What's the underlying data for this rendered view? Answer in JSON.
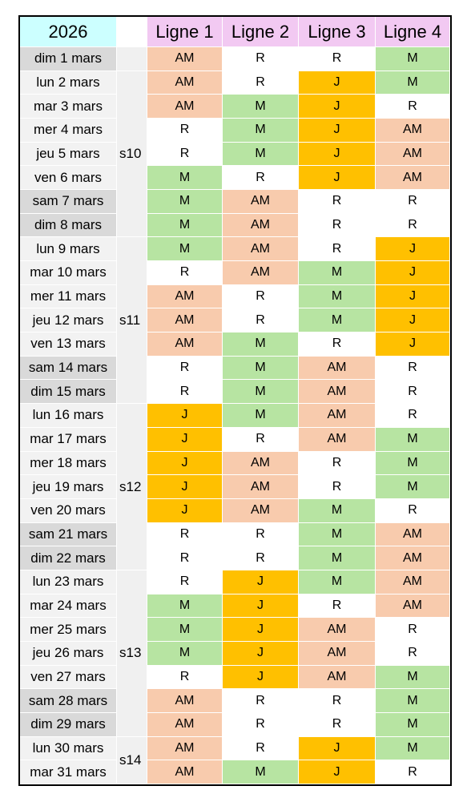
{
  "header": {
    "year": "2026",
    "lines": [
      "Ligne 1",
      "Ligne 2",
      "Ligne 3",
      "Ligne 4"
    ]
  },
  "colors": {
    "year": "#ccffff",
    "lines": "#f2c9f2",
    "weekday": "#f2f2f2",
    "weekend": "#d9d9d9",
    "week": "#f0f0f0",
    "cells": {
      "AM": "#f8cbad",
      "M": "#b7e4a2",
      "J": "#ffc000",
      "R": "#ffffff"
    }
  },
  "blocks": [
    {
      "week": null,
      "days": [
        {
          "date": "dim 1 mars",
          "weekend": true,
          "cells": [
            "AM",
            "R",
            "R",
            "M"
          ]
        }
      ]
    },
    {
      "week": "s10",
      "days": [
        {
          "date": "lun 2 mars",
          "cells": [
            "AM",
            "R",
            "J",
            "M"
          ]
        },
        {
          "date": "mar 3 mars",
          "cells": [
            "AM",
            "M",
            "J",
            "R"
          ]
        },
        {
          "date": "mer 4 mars",
          "cells": [
            "R",
            "M",
            "J",
            "AM"
          ]
        },
        {
          "date": "jeu 5 mars",
          "cells": [
            "R",
            "M",
            "J",
            "AM"
          ]
        },
        {
          "date": "ven 6 mars",
          "cells": [
            "M",
            "R",
            "J",
            "AM"
          ]
        },
        {
          "date": "sam 7 mars",
          "weekend": true,
          "cells": [
            "M",
            "AM",
            "R",
            "R"
          ]
        },
        {
          "date": "dim 8 mars",
          "weekend": true,
          "cells": [
            "M",
            "AM",
            "R",
            "R"
          ]
        }
      ]
    },
    {
      "week": "s11",
      "days": [
        {
          "date": "lun 9 mars",
          "cells": [
            "M",
            "AM",
            "R",
            "J"
          ]
        },
        {
          "date": "mar 10 mars",
          "cells": [
            "R",
            "AM",
            "M",
            "J"
          ]
        },
        {
          "date": "mer 11 mars",
          "cells": [
            "AM",
            "R",
            "M",
            "J"
          ]
        },
        {
          "date": "jeu 12 mars",
          "cells": [
            "AM",
            "R",
            "M",
            "J"
          ]
        },
        {
          "date": "ven 13 mars",
          "cells": [
            "AM",
            "M",
            "R",
            "J"
          ]
        },
        {
          "date": "sam 14 mars",
          "weekend": true,
          "cells": [
            "R",
            "M",
            "AM",
            "R"
          ]
        },
        {
          "date": "dim 15 mars",
          "weekend": true,
          "cells": [
            "R",
            "M",
            "AM",
            "R"
          ]
        }
      ]
    },
    {
      "week": "s12",
      "days": [
        {
          "date": "lun 16 mars",
          "cells": [
            "J",
            "M",
            "AM",
            "R"
          ]
        },
        {
          "date": "mar 17 mars",
          "cells": [
            "J",
            "R",
            "AM",
            "M"
          ]
        },
        {
          "date": "mer 18 mars",
          "cells": [
            "J",
            "AM",
            "R",
            "M"
          ]
        },
        {
          "date": "jeu 19 mars",
          "cells": [
            "J",
            "AM",
            "R",
            "M"
          ]
        },
        {
          "date": "ven 20 mars",
          "cells": [
            "J",
            "AM",
            "M",
            "R"
          ]
        },
        {
          "date": "sam 21 mars",
          "weekend": true,
          "cells": [
            "R",
            "R",
            "M",
            "AM"
          ]
        },
        {
          "date": "dim 22 mars",
          "weekend": true,
          "cells": [
            "R",
            "R",
            "M",
            "AM"
          ]
        }
      ]
    },
    {
      "week": "s13",
      "days": [
        {
          "date": "lun 23 mars",
          "cells": [
            "R",
            "J",
            "M",
            "AM"
          ]
        },
        {
          "date": "mar 24 mars",
          "cells": [
            "M",
            "J",
            "R",
            "AM"
          ]
        },
        {
          "date": "mer 25 mars",
          "cells": [
            "M",
            "J",
            "AM",
            "R"
          ]
        },
        {
          "date": "jeu 26 mars",
          "cells": [
            "M",
            "J",
            "AM",
            "R"
          ]
        },
        {
          "date": "ven 27 mars",
          "cells": [
            "R",
            "J",
            "AM",
            "M"
          ]
        },
        {
          "date": "sam 28 mars",
          "weekend": true,
          "cells": [
            "AM",
            "R",
            "R",
            "M"
          ]
        },
        {
          "date": "dim 29 mars",
          "weekend": true,
          "cells": [
            "AM",
            "R",
            "R",
            "M"
          ]
        }
      ]
    },
    {
      "week": "s14",
      "days": [
        {
          "date": "lun 30 mars",
          "cells": [
            "AM",
            "R",
            "J",
            "M"
          ]
        },
        {
          "date": "mar 31 mars",
          "cells": [
            "AM",
            "M",
            "J",
            "R"
          ]
        }
      ]
    }
  ]
}
